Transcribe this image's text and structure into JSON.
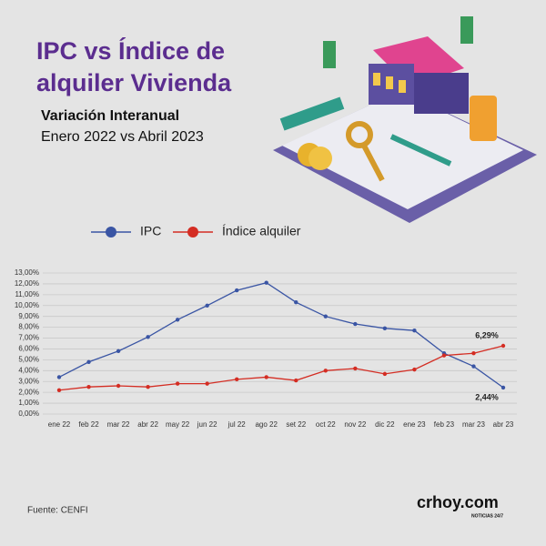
{
  "chart_data": {
    "type": "line",
    "title_lines": [
      "IPC vs Índice de",
      "alquiler Vivienda"
    ],
    "subtitle": "Variación Interanual",
    "period": "Enero 2022 vs Abril 2023",
    "categories": [
      "ene 22",
      "feb 22",
      "mar 22",
      "abr 22",
      "may 22",
      "jun 22",
      "jul 22",
      "ago 22",
      "set 22",
      "oct 22",
      "nov 22",
      "dic 22",
      "ene 23",
      "feb 23",
      "mar 23",
      "abr 23"
    ],
    "series": [
      {
        "name": "IPC",
        "color": "#3a55a4",
        "values": [
          3.4,
          4.8,
          5.8,
          7.1,
          8.7,
          10.0,
          11.4,
          12.1,
          10.3,
          9.0,
          8.3,
          7.9,
          7.7,
          5.6,
          4.4,
          2.44
        ],
        "value_labels": [
          null,
          null,
          null,
          null,
          null,
          null,
          null,
          null,
          null,
          null,
          null,
          null,
          null,
          null,
          null,
          "2,44%"
        ]
      },
      {
        "name": "Índice alquiler",
        "color": "#d42d23",
        "values": [
          2.2,
          2.5,
          2.6,
          2.5,
          2.8,
          2.8,
          3.2,
          3.4,
          3.1,
          4.0,
          4.2,
          3.7,
          4.1,
          5.4,
          5.6,
          6.29
        ],
        "value_labels": [
          null,
          null,
          null,
          null,
          null,
          null,
          null,
          null,
          null,
          null,
          null,
          null,
          null,
          null,
          null,
          "6,29%"
        ]
      }
    ],
    "ylim": [
      0,
      13
    ],
    "yticks": [
      {
        "value": 0,
        "label": "0,00%"
      },
      {
        "value": 1,
        "label": "1,00%"
      },
      {
        "value": 2,
        "label": "2,00%"
      },
      {
        "value": 3,
        "label": "3,00%"
      },
      {
        "value": 4,
        "label": "4,00%"
      },
      {
        "value": 5,
        "label": "5,00%"
      },
      {
        "value": 6,
        "label": "6,00%"
      },
      {
        "value": 7,
        "label": "7,00%"
      },
      {
        "value": 8,
        "label": "8,00%"
      },
      {
        "value": 9,
        "label": "9,00%"
      },
      {
        "value": 10,
        "label": "10,00%"
      },
      {
        "value": 11,
        "label": "11,00%"
      },
      {
        "value": 12,
        "label": "12,00%"
      },
      {
        "value": 13,
        "label": "13,00%"
      }
    ],
    "grid": true,
    "legend": "top",
    "source": "Fuente: CENFI",
    "brand": "crhoy.com",
    "brand_tagline": "NOTICIAS 24/7"
  }
}
